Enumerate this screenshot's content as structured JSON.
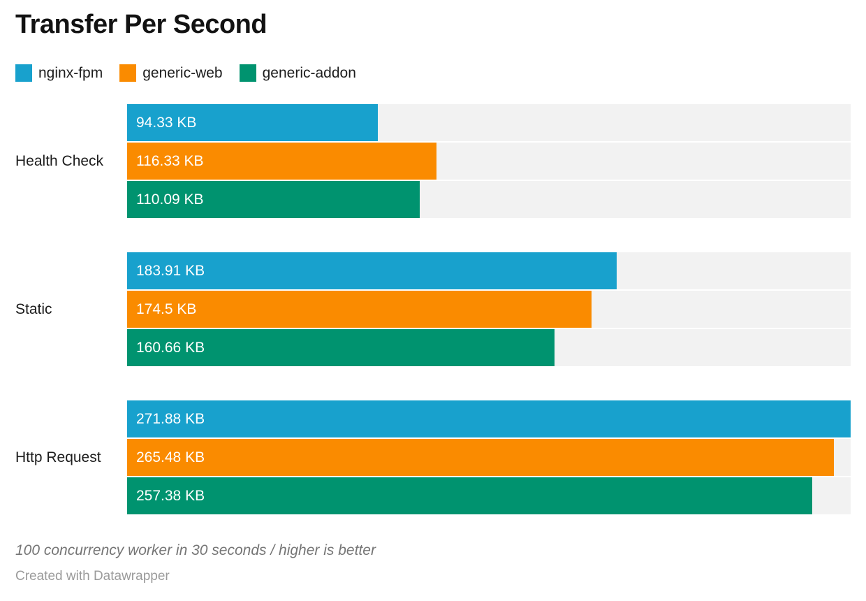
{
  "header": {
    "title": "Transfer Per Second"
  },
  "legend": [
    {
      "label": "nginx-fpm",
      "color": "#18A1CD"
    },
    {
      "label": "generic-web",
      "color": "#FA8B00"
    },
    {
      "label": "generic-addon",
      "color": "#00936F"
    }
  ],
  "chart_data": {
    "type": "bar",
    "orientation": "horizontal",
    "title": "Transfer Per Second",
    "categories": [
      "Health Check",
      "Static",
      "Http Request"
    ],
    "series": [
      {
        "name": "nginx-fpm",
        "color": "#18A1CD",
        "values": [
          94.33,
          183.91,
          271.88
        ],
        "labels": [
          "94.33 KB",
          "183.91 KB",
          "271.88 KB"
        ]
      },
      {
        "name": "generic-web",
        "color": "#FA8B00",
        "values": [
          116.33,
          174.5,
          265.48
        ],
        "labels": [
          "116.33 KB",
          "174.5 KB",
          "265.48 KB"
        ]
      },
      {
        "name": "generic-addon",
        "color": "#00936F",
        "values": [
          110.09,
          160.66,
          257.38
        ],
        "labels": [
          "110.09 KB",
          "160.66 KB",
          "257.38 KB"
        ]
      }
    ],
    "value_unit": "KB",
    "xlim": [
      0,
      271.88
    ],
    "track_color": "#F2F2F2",
    "grid": false,
    "legend_position": "top",
    "value_labels_inside_bars": true
  },
  "footer": {
    "note": "100 concurrency worker in 30 seconds / higher is better",
    "credit": "Created with Datawrapper"
  }
}
